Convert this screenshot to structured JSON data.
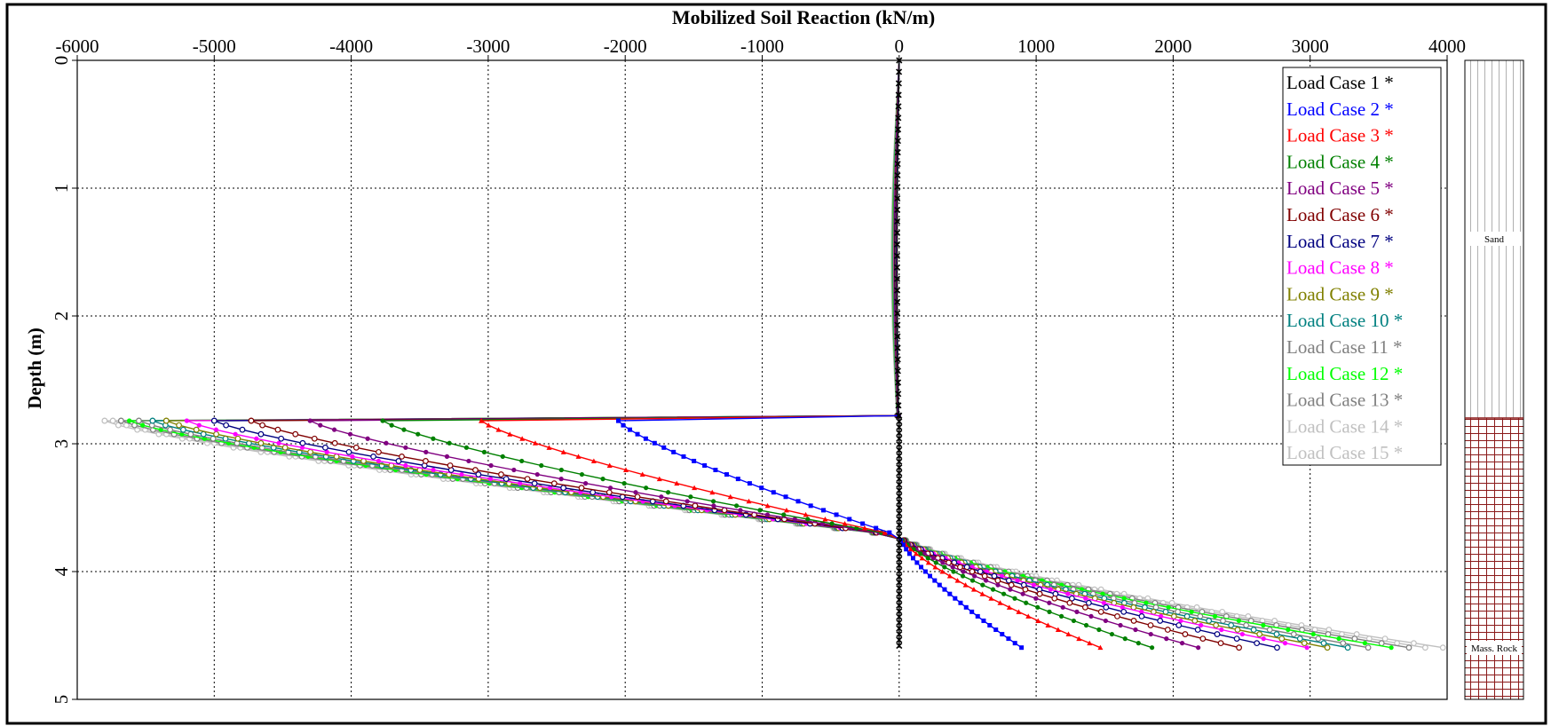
{
  "chart_data": {
    "type": "line",
    "title": "Mobilized Soil Reaction (kN/m)",
    "ylabel": "Depth (m)",
    "xlim": [
      -6000,
      4000
    ],
    "ylim": [
      0,
      5
    ],
    "y_inverted": true,
    "x_axis_position": "top",
    "grid": true,
    "grid_style": "dotted",
    "legend_position": "top-right",
    "x_ticks": [
      "-6000",
      "-5000",
      "-4000",
      "-3000",
      "-2000",
      "-1000",
      "0",
      "1000",
      "2000",
      "3000",
      "4000"
    ],
    "y_ticks": [
      "0",
      "1",
      "2",
      "3",
      "4",
      "5"
    ],
    "boundary_depth": 2.78,
    "pile_tip_depth": 4.6,
    "zero_crossing_depth": 3.72,
    "series": [
      {
        "name": "Load Case 1 *",
        "color": "#000000",
        "marker": "x",
        "min_reaction": 0,
        "max_reaction": 0
      },
      {
        "name": "Load Case 2 *",
        "color": "#0000ff",
        "marker": "square",
        "min_reaction": -2050,
        "max_reaction": 900
      },
      {
        "name": "Load Case 3 *",
        "color": "#ff0000",
        "marker": "triangle",
        "min_reaction": -3050,
        "max_reaction": 1480
      },
      {
        "name": "Load Case 4 *",
        "color": "#008000",
        "marker": "dot",
        "min_reaction": -3770,
        "max_reaction": 1860
      },
      {
        "name": "Load Case 5 *",
        "color": "#800080",
        "marker": "dot",
        "min_reaction": -4300,
        "max_reaction": 2200
      },
      {
        "name": "Load Case 6 *",
        "color": "#800000",
        "marker": "circle",
        "min_reaction": -4730,
        "max_reaction": 2500
      },
      {
        "name": "Load Case 7 *",
        "color": "#000080",
        "marker": "circle",
        "min_reaction": -5000,
        "max_reaction": 2780
      },
      {
        "name": "Load Case 8 *",
        "color": "#ff00ff",
        "marker": "dot",
        "min_reaction": -5200,
        "max_reaction": 3000
      },
      {
        "name": "Load Case 9 *",
        "color": "#808000",
        "marker": "circle",
        "min_reaction": -5350,
        "max_reaction": 3150
      },
      {
        "name": "Load Case 10 *",
        "color": "#008080",
        "marker": "circle",
        "min_reaction": -5450,
        "max_reaction": 3300
      },
      {
        "name": "Load Case 11 *",
        "color": "#808080",
        "marker": "circle",
        "min_reaction": -5550,
        "max_reaction": 3450
      },
      {
        "name": "Load Case 12 *",
        "color": "#00ff00",
        "marker": "dot",
        "min_reaction": -5620,
        "max_reaction": 3620
      },
      {
        "name": "Load Case 13 *",
        "color": "#808080",
        "marker": "circle",
        "min_reaction": -5680,
        "max_reaction": 3750
      },
      {
        "name": "Load Case 14 *",
        "color": "#c0c0c0",
        "marker": "circle",
        "min_reaction": -5740,
        "max_reaction": 3870
      },
      {
        "name": "Load Case 15 *",
        "color": "#c0c0c0",
        "marker": "circle",
        "min_reaction": -5800,
        "max_reaction": 4000
      }
    ]
  },
  "soil_column": {
    "layers": [
      {
        "label": "Sand",
        "top": 0,
        "bottom": 2.78,
        "pattern": "vertical-lines",
        "color": "#b0b0b0"
      },
      {
        "label": "Mass. Rock",
        "top": 2.78,
        "bottom": 5,
        "pattern": "grid",
        "color": "#8b1a1a"
      }
    ]
  }
}
